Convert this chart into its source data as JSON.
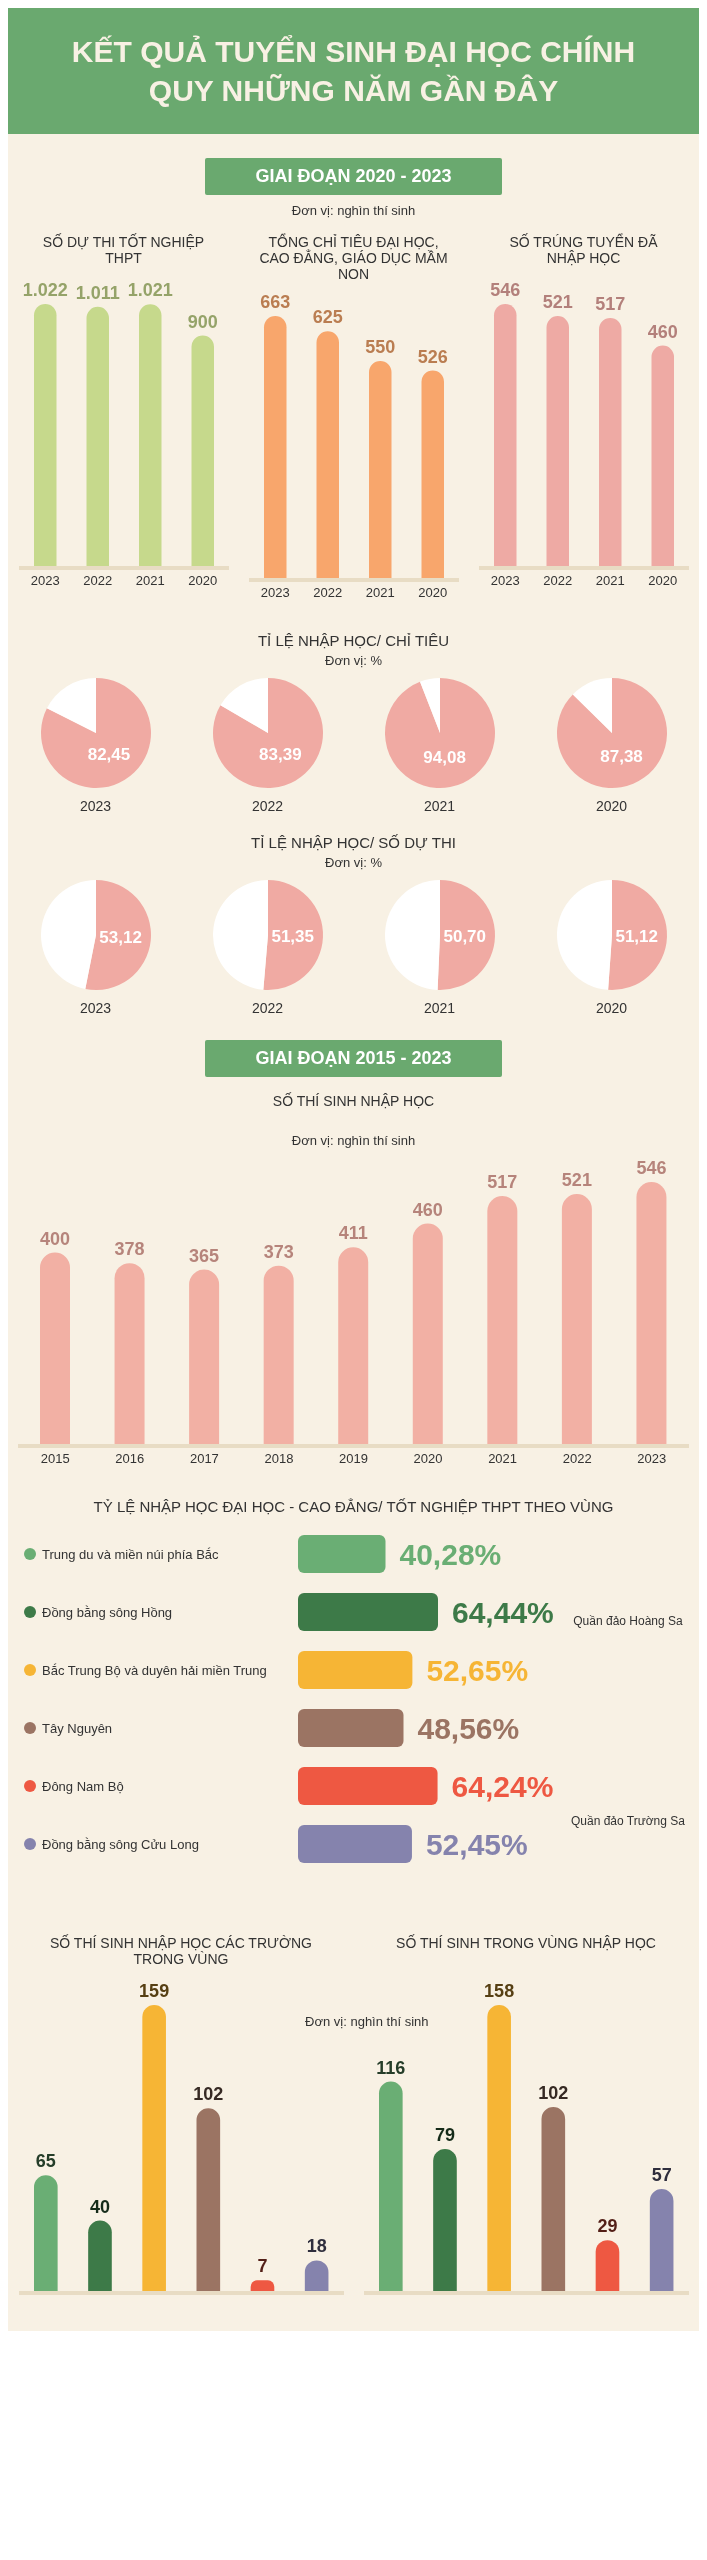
{
  "chart_data": [
    {
      "type": "other",
      "title": "KẾT QUẢ TUYỂN SINH ĐẠI HỌC CHÍNH QUY NHỮNG NĂM GẦN ĐÂY",
      "subtitle": "GIAI ĐOẠN 2020 - 2023",
      "annotations": [
        "Đơn vị: nghìn thí sinh"
      ]
    },
    {
      "type": "bar",
      "title": "SỐ DỰ THI TỐT NGHIỆP THPT",
      "categories": [
        "2023",
        "2022",
        "2021",
        "2020"
      ],
      "values": [
        1022,
        1011,
        1021,
        900
      ],
      "value_labels": [
        "1.022",
        "1.011",
        "1.021",
        "900"
      ],
      "color": "#c6d98c"
    },
    {
      "type": "bar",
      "title": "TỔNG CHỈ TIÊU ĐẠI HỌC, CAO ĐẲNG, GIÁO DỤC MẦM NON",
      "categories": [
        "2023",
        "2022",
        "2021",
        "2020"
      ],
      "values": [
        663,
        625,
        550,
        526
      ],
      "data_labels": true,
      "color": "#f8a66c"
    },
    {
      "type": "bar",
      "title": "SỐ TRÚNG TUYỂN ĐÃ NHẬP HỌC",
      "categories": [
        "2023",
        "2022",
        "2021",
        "2020"
      ],
      "values": [
        546,
        521,
        517,
        460
      ],
      "data_labels": true,
      "color": "#eeaaa4"
    },
    {
      "type": "other",
      "title": "TỈ LỆ NHẬP HỌC/ CHỈ TIÊU",
      "subtitle": "Đơn vị: %"
    },
    {
      "type": "pie",
      "categories": [
        null,
        null
      ],
      "values": [
        82.45,
        17.55
      ],
      "value_labels": [
        "82,45",
        null
      ],
      "colors": [
        "#f0aaa3",
        "#ffffff"
      ],
      "annotations": [
        "2023"
      ]
    },
    {
      "type": "pie",
      "categories": [
        null,
        null
      ],
      "values": [
        83.39,
        16.61
      ],
      "value_labels": [
        "83,39",
        null
      ],
      "colors": [
        "#f0aaa3",
        "#ffffff"
      ],
      "annotations": [
        "2022"
      ]
    },
    {
      "type": "pie",
      "categories": [
        null,
        null
      ],
      "values": [
        94.08,
        5.92
      ],
      "value_labels": [
        "94,08",
        null
      ],
      "colors": [
        "#f0aaa3",
        "#ffffff"
      ],
      "annotations": [
        "2021"
      ]
    },
    {
      "type": "pie",
      "categories": [
        null,
        null
      ],
      "values": [
        87.38,
        12.62
      ],
      "value_labels": [
        "87,38",
        null
      ],
      "colors": [
        "#f0aaa3",
        "#ffffff"
      ],
      "annotations": [
        "2020"
      ]
    },
    {
      "type": "other",
      "title": "TỈ LỆ NHẬP HỌC/ SỐ DỰ THI",
      "subtitle": "Đơn vị: %"
    },
    {
      "type": "pie",
      "categories": [
        null,
        null
      ],
      "values": [
        53.12,
        46.88
      ],
      "value_labels": [
        "53,12",
        null
      ],
      "colors": [
        "#f0aaa3",
        "#ffffff"
      ],
      "annotations": [
        "2023"
      ]
    },
    {
      "type": "pie",
      "categories": [
        null,
        null
      ],
      "values": [
        51.35,
        48.65
      ],
      "value_labels": [
        "51,35",
        null
      ],
      "colors": [
        "#f0aaa3",
        "#ffffff"
      ],
      "annotations": [
        "2022"
      ]
    },
    {
      "type": "pie",
      "categories": [
        null,
        null
      ],
      "values": [
        50.7,
        49.3
      ],
      "value_labels": [
        "50,70",
        null
      ],
      "colors": [
        "#f0aaa3",
        "#ffffff"
      ],
      "annotations": [
        "2021"
      ]
    },
    {
      "type": "pie",
      "categories": [
        null,
        null
      ],
      "values": [
        51.12,
        48.88
      ],
      "value_labels": [
        "51,12",
        null
      ],
      "colors": [
        "#f0aaa3",
        "#ffffff"
      ],
      "annotations": [
        "2020"
      ]
    },
    {
      "type": "other",
      "subtitle": "GIAI ĐOẠN 2015 - 2023"
    },
    {
      "type": "bar",
      "title": "SỐ THÍ SINH NHẬP HỌC",
      "subtitle": "Đơn vị: nghìn thí sinh",
      "categories": [
        "2015",
        "2016",
        "2017",
        "2018",
        "2019",
        "2020",
        "2021",
        "2022",
        "2023"
      ],
      "values": [
        400,
        378,
        365,
        373,
        411,
        460,
        517,
        521,
        546
      ],
      "data_labels": true,
      "color": "#f2b0a4"
    },
    {
      "type": "other",
      "title": "TỶ LỆ NHẬP HỌC ĐẠI HỌC - CAO ĐẲNG/ TỐT NGHIỆP THPT THEO VÙNG",
      "categories": [
        "Trung du và miền núi phía Bắc",
        "Đồng bằng sông Hồng",
        "Bắc Trung Bộ và duyên hải miền Trung",
        "Tây Nguyên",
        "Đông Nam Bộ",
        "Đồng bằng sông Cửu Long"
      ],
      "values": [
        40.28,
        64.44,
        52.65,
        48.56,
        64.24,
        52.45
      ],
      "value_labels": [
        "40,28%",
        "64,44%",
        "52,65%",
        "48,56%",
        "64,24%",
        "52,45%"
      ],
      "colors": [
        "#6aae74",
        "#3d7a48",
        "#f6b535",
        "#9b7463",
        "#ee5842",
        "#8583ad"
      ],
      "annotations": [
        "Quần đảo Hoàng Sa",
        "Quần đảo Trường Sa"
      ]
    },
    {
      "type": "bar",
      "title": "SỐ THÍ SINH NHẬP HỌC CÁC TRƯỜNG TRONG VÙNG",
      "categories": [
        null,
        null,
        null,
        null,
        null,
        null
      ],
      "values": [
        65,
        40,
        159,
        102,
        7,
        18
      ],
      "data_labels": true,
      "colors": [
        "#6aae74",
        "#3d7a48",
        "#f6b535",
        "#9b7463",
        "#ee5842",
        "#8583ad"
      ],
      "annotations": [
        "Đơn vị: nghìn thí sinh"
      ]
    },
    {
      "type": "bar",
      "title": "SỐ THÍ SINH TRONG VÙNG NHẬP HỌC",
      "categories": [
        null,
        null,
        null,
        null,
        null,
        null
      ],
      "values": [
        116,
        79,
        158,
        102,
        29,
        57
      ],
      "data_labels": true,
      "colors": [
        "#6aae74",
        "#3d7a48",
        "#f6b535",
        "#9b7463",
        "#ee5842",
        "#8583ad"
      ]
    }
  ]
}
